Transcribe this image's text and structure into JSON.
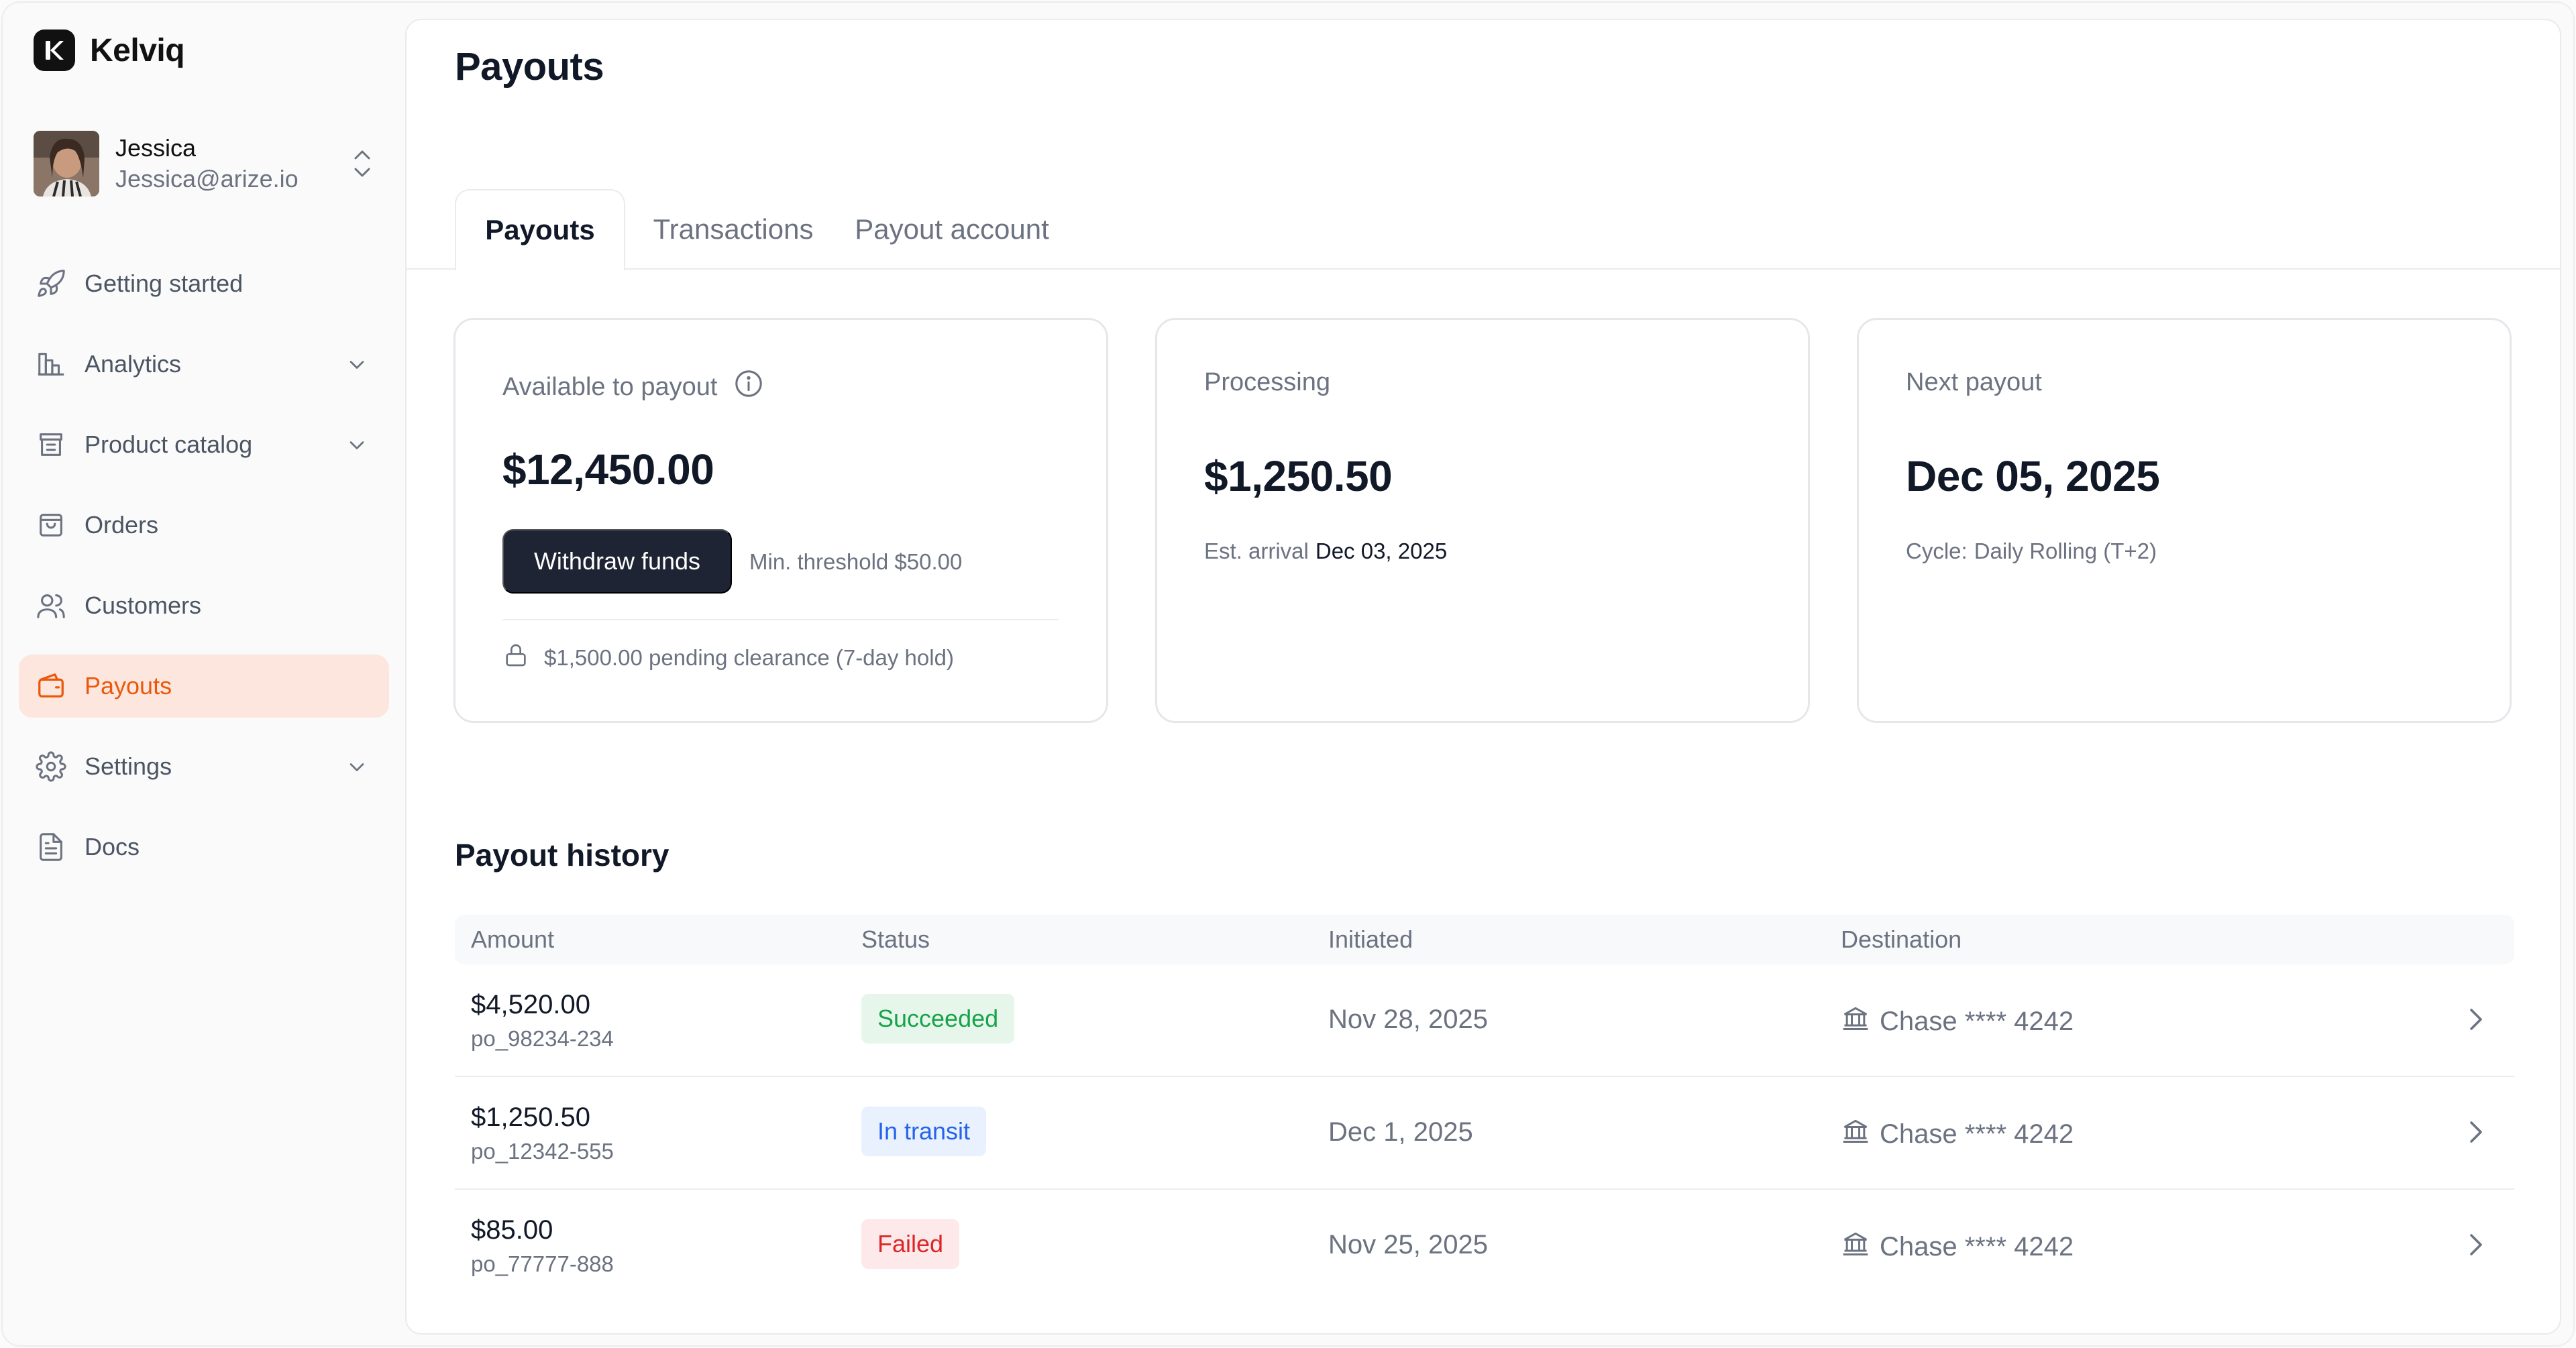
{
  "brand": {
    "name": "Kelviq",
    "logo_letter": "K"
  },
  "user": {
    "name": "Jessica",
    "email": "Jessica@arize.io"
  },
  "sidebar": {
    "items": [
      {
        "label": "Getting started",
        "icon": "rocket-icon",
        "expandable": false,
        "active": false
      },
      {
        "label": "Analytics",
        "icon": "bar-chart-icon",
        "expandable": true,
        "active": false
      },
      {
        "label": "Product catalog",
        "icon": "catalog-icon",
        "expandable": true,
        "active": false
      },
      {
        "label": "Orders",
        "icon": "shopping-bag-icon",
        "expandable": false,
        "active": false
      },
      {
        "label": "Customers",
        "icon": "users-icon",
        "expandable": false,
        "active": false
      },
      {
        "label": "Payouts",
        "icon": "wallet-icon",
        "expandable": false,
        "active": true
      },
      {
        "label": "Settings",
        "icon": "gear-icon",
        "expandable": true,
        "active": false
      },
      {
        "label": "Docs",
        "icon": "document-icon",
        "expandable": false,
        "active": false
      }
    ]
  },
  "page": {
    "title": "Payouts"
  },
  "tabs": [
    {
      "label": "Payouts",
      "active": true
    },
    {
      "label": "Transactions",
      "active": false
    },
    {
      "label": "Payout account",
      "active": false
    }
  ],
  "cards": {
    "available": {
      "label": "Available to payout",
      "value": "$12,450.00",
      "button": "Withdraw funds",
      "threshold": "Min. threshold $50.00",
      "pending": "$1,500.00 pending clearance (7-day hold)"
    },
    "processing": {
      "label": "Processing",
      "value": "$1,250.50",
      "meta_label": "Est. arrival",
      "meta_value": "Dec 03, 2025"
    },
    "next": {
      "label": "Next payout",
      "value": "Dec 05, 2025",
      "meta_label": "Cycle:",
      "meta_value": "Daily Rolling (T+2)"
    }
  },
  "history": {
    "title": "Payout history",
    "columns": [
      "Amount",
      "Status",
      "Initiated",
      "Destination"
    ],
    "rows": [
      {
        "amount": "$4,520.00",
        "id": "po_98234-234",
        "status": "Succeeded",
        "status_type": "ok",
        "date": "Nov 28, 2025",
        "destination": "Chase **** 4242"
      },
      {
        "amount": "$1,250.50",
        "id": "po_12342-555",
        "status": "In transit",
        "status_type": "transit",
        "date": "Dec 1, 2025",
        "destination": "Chase **** 4242"
      },
      {
        "amount": "$85.00",
        "id": "po_77777-888",
        "status": "Failed",
        "status_type": "fail",
        "date": "Nov 25, 2025",
        "destination": "Chase **** 4242"
      }
    ]
  },
  "colors": {
    "accent": "#ea580c",
    "accent_bg": "#fde6dd",
    "button_dark": "#1e2433"
  }
}
